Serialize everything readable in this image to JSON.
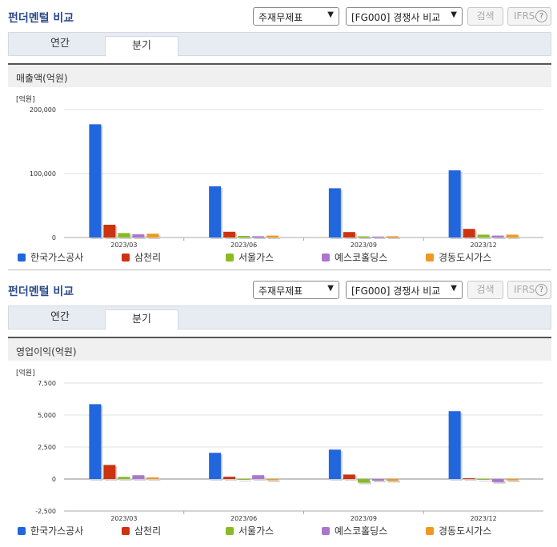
{
  "title": "펀더멘털 비교",
  "controls": {
    "statement_select": "주재무제표",
    "compare_select": "[FG000] 경쟁사 비교",
    "search_button": "검색",
    "ifrs_button": "IFRS",
    "help_icon": "?"
  },
  "tabs": [
    "연간",
    "분기"
  ],
  "active_tab": "분기",
  "colors": {
    "한국가스공사": "#2266dd",
    "삼천리": "#cc3311",
    "서울가스": "#88bb22",
    "예스코홀딩스": "#aa77cc",
    "경동도시가스": "#ee9922"
  },
  "chart_data": [
    {
      "type": "bar",
      "title": "매출액(억원)",
      "ylabel": "[억원]",
      "categories": [
        "2023/03",
        "2023/06",
        "2023/09",
        "2023/12"
      ],
      "ylim": [
        0,
        200000
      ],
      "yticks": [
        "0",
        "100,000",
        "200,000"
      ],
      "ytick_values": [
        0,
        100000,
        200000
      ],
      "series": [
        {
          "name": "한국가스공사",
          "values": [
            177000,
            80000,
            77000,
            105000
          ]
        },
        {
          "name": "삼천리",
          "values": [
            20000,
            9000,
            8500,
            13500
          ]
        },
        {
          "name": "서울가스",
          "values": [
            7000,
            2500,
            1800,
            4500
          ]
        },
        {
          "name": "예스코홀딩스",
          "values": [
            5000,
            2000,
            1500,
            3000
          ]
        },
        {
          "name": "경동도시가스",
          "values": [
            6000,
            3000,
            2000,
            4500
          ]
        }
      ]
    },
    {
      "type": "bar",
      "title": "영업이익(억원)",
      "ylabel": "[억원]",
      "categories": [
        "2023/03",
        "2023/06",
        "2023/09",
        "2023/12"
      ],
      "ylim": [
        -2500,
        7500
      ],
      "yticks": [
        "-2,500",
        "0",
        "2,500",
        "5,000",
        "7,500"
      ],
      "ytick_values": [
        -2500,
        0,
        2500,
        5000,
        7500
      ],
      "series": [
        {
          "name": "한국가스공사",
          "values": [
            5850,
            2050,
            2300,
            5300
          ]
        },
        {
          "name": "삼천리",
          "values": [
            1100,
            180,
            350,
            60
          ]
        },
        {
          "name": "서울가스",
          "values": [
            170,
            -20,
            -280,
            -30
          ]
        },
        {
          "name": "예스코홀딩스",
          "values": [
            300,
            300,
            -130,
            -240
          ]
        },
        {
          "name": "경동도시가스",
          "values": [
            130,
            -100,
            -150,
            -110
          ]
        }
      ]
    }
  ]
}
